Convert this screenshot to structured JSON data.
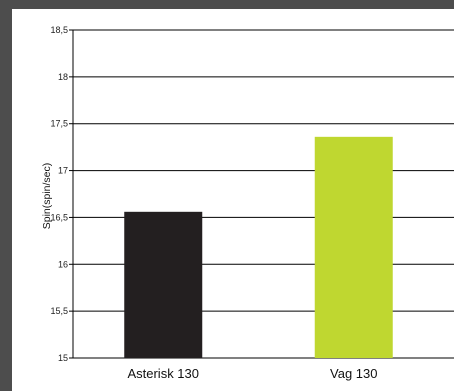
{
  "chart_data": {
    "type": "bar",
    "title": "",
    "xlabel": "",
    "ylabel": "Spin(spin/sec)",
    "categories": [
      "Asterisk 130",
      "Vag 130"
    ],
    "values": [
      16.56,
      17.36
    ],
    "ylim": [
      15,
      18.5
    ],
    "yticks": [
      15,
      15.5,
      16,
      16.5,
      17,
      17.5,
      18,
      18.5
    ],
    "ytick_labels": [
      "15",
      "15,5",
      "16",
      "16,5",
      "17",
      "17,5",
      "18",
      "18,5"
    ],
    "grid": true,
    "legend": "none",
    "colors": [
      "#231f20",
      "#bfd730"
    ]
  }
}
